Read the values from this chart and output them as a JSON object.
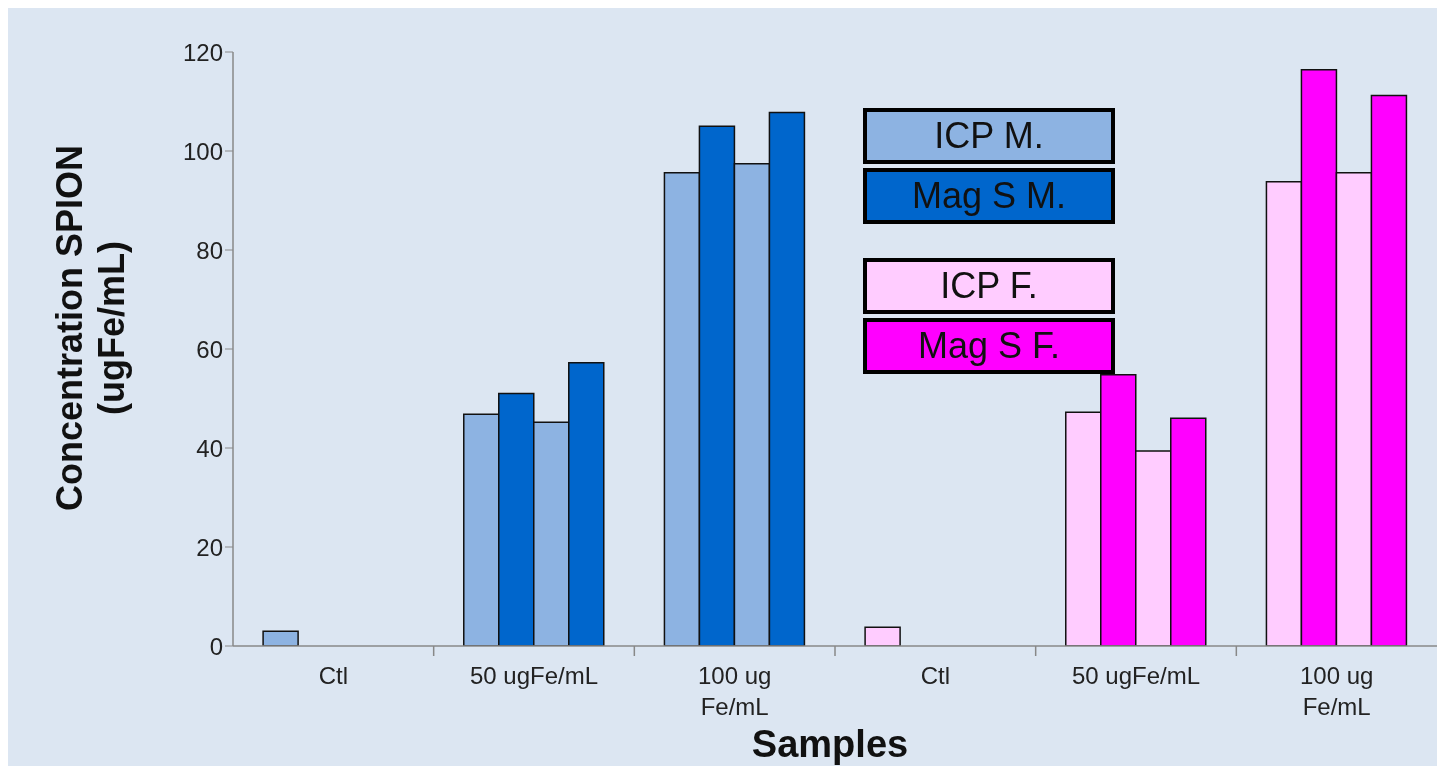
{
  "chart_data": {
    "type": "bar",
    "xlabel": "Samples",
    "ylabel": "Concentration SPION\n(ugFe/mL)",
    "categories": [
      "Ctl",
      "50 ugFe/mL",
      "100 ug Fe/mL",
      "Ctl",
      "50 ugFe/mL",
      "100 ug Fe/mL"
    ],
    "series": [
      {
        "name": "ICP M.",
        "color": "#8db3e2",
        "values": [
          3,
          46.8,
          95.6,
          null,
          null,
          null
        ]
      },
      {
        "name": "Mag S M.",
        "color": "#0066cc",
        "values": [
          0,
          51,
          105,
          null,
          null,
          null
        ]
      },
      {
        "color": "#8db3e2",
        "values": [
          0,
          45.2,
          97.4,
          null,
          null,
          null
        ]
      },
      {
        "color": "#0066cc",
        "values": [
          0,
          57.2,
          107.8,
          null,
          null,
          null
        ]
      },
      {
        "name": "ICP F.",
        "color": "#ffccff",
        "values": [
          null,
          null,
          null,
          3.8,
          47.2,
          93.8
        ]
      },
      {
        "name": "Mag S F.",
        "color": "#ff00ff",
        "values": [
          null,
          null,
          null,
          0,
          54.8,
          116.4
        ]
      },
      {
        "color": "#ffccff",
        "values": [
          null,
          null,
          null,
          0,
          39.4,
          95.6
        ]
      },
      {
        "color": "#ff00ff",
        "values": [
          null,
          null,
          null,
          0,
          46,
          111.2
        ]
      }
    ],
    "ylim": [
      0,
      120
    ],
    "yticks": [
      0,
      20,
      40,
      60,
      80,
      100,
      120
    ],
    "legend": "top"
  }
}
